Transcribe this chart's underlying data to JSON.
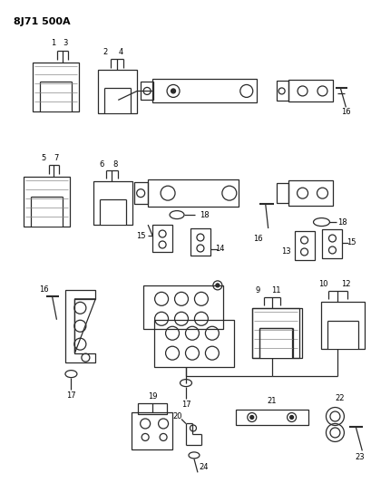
{
  "title": "8J71 500A",
  "bg_color": "#ffffff",
  "line_color": "#2a2a2a",
  "text_color": "#000000",
  "fig_width": 4.1,
  "fig_height": 5.33,
  "dpi": 100
}
